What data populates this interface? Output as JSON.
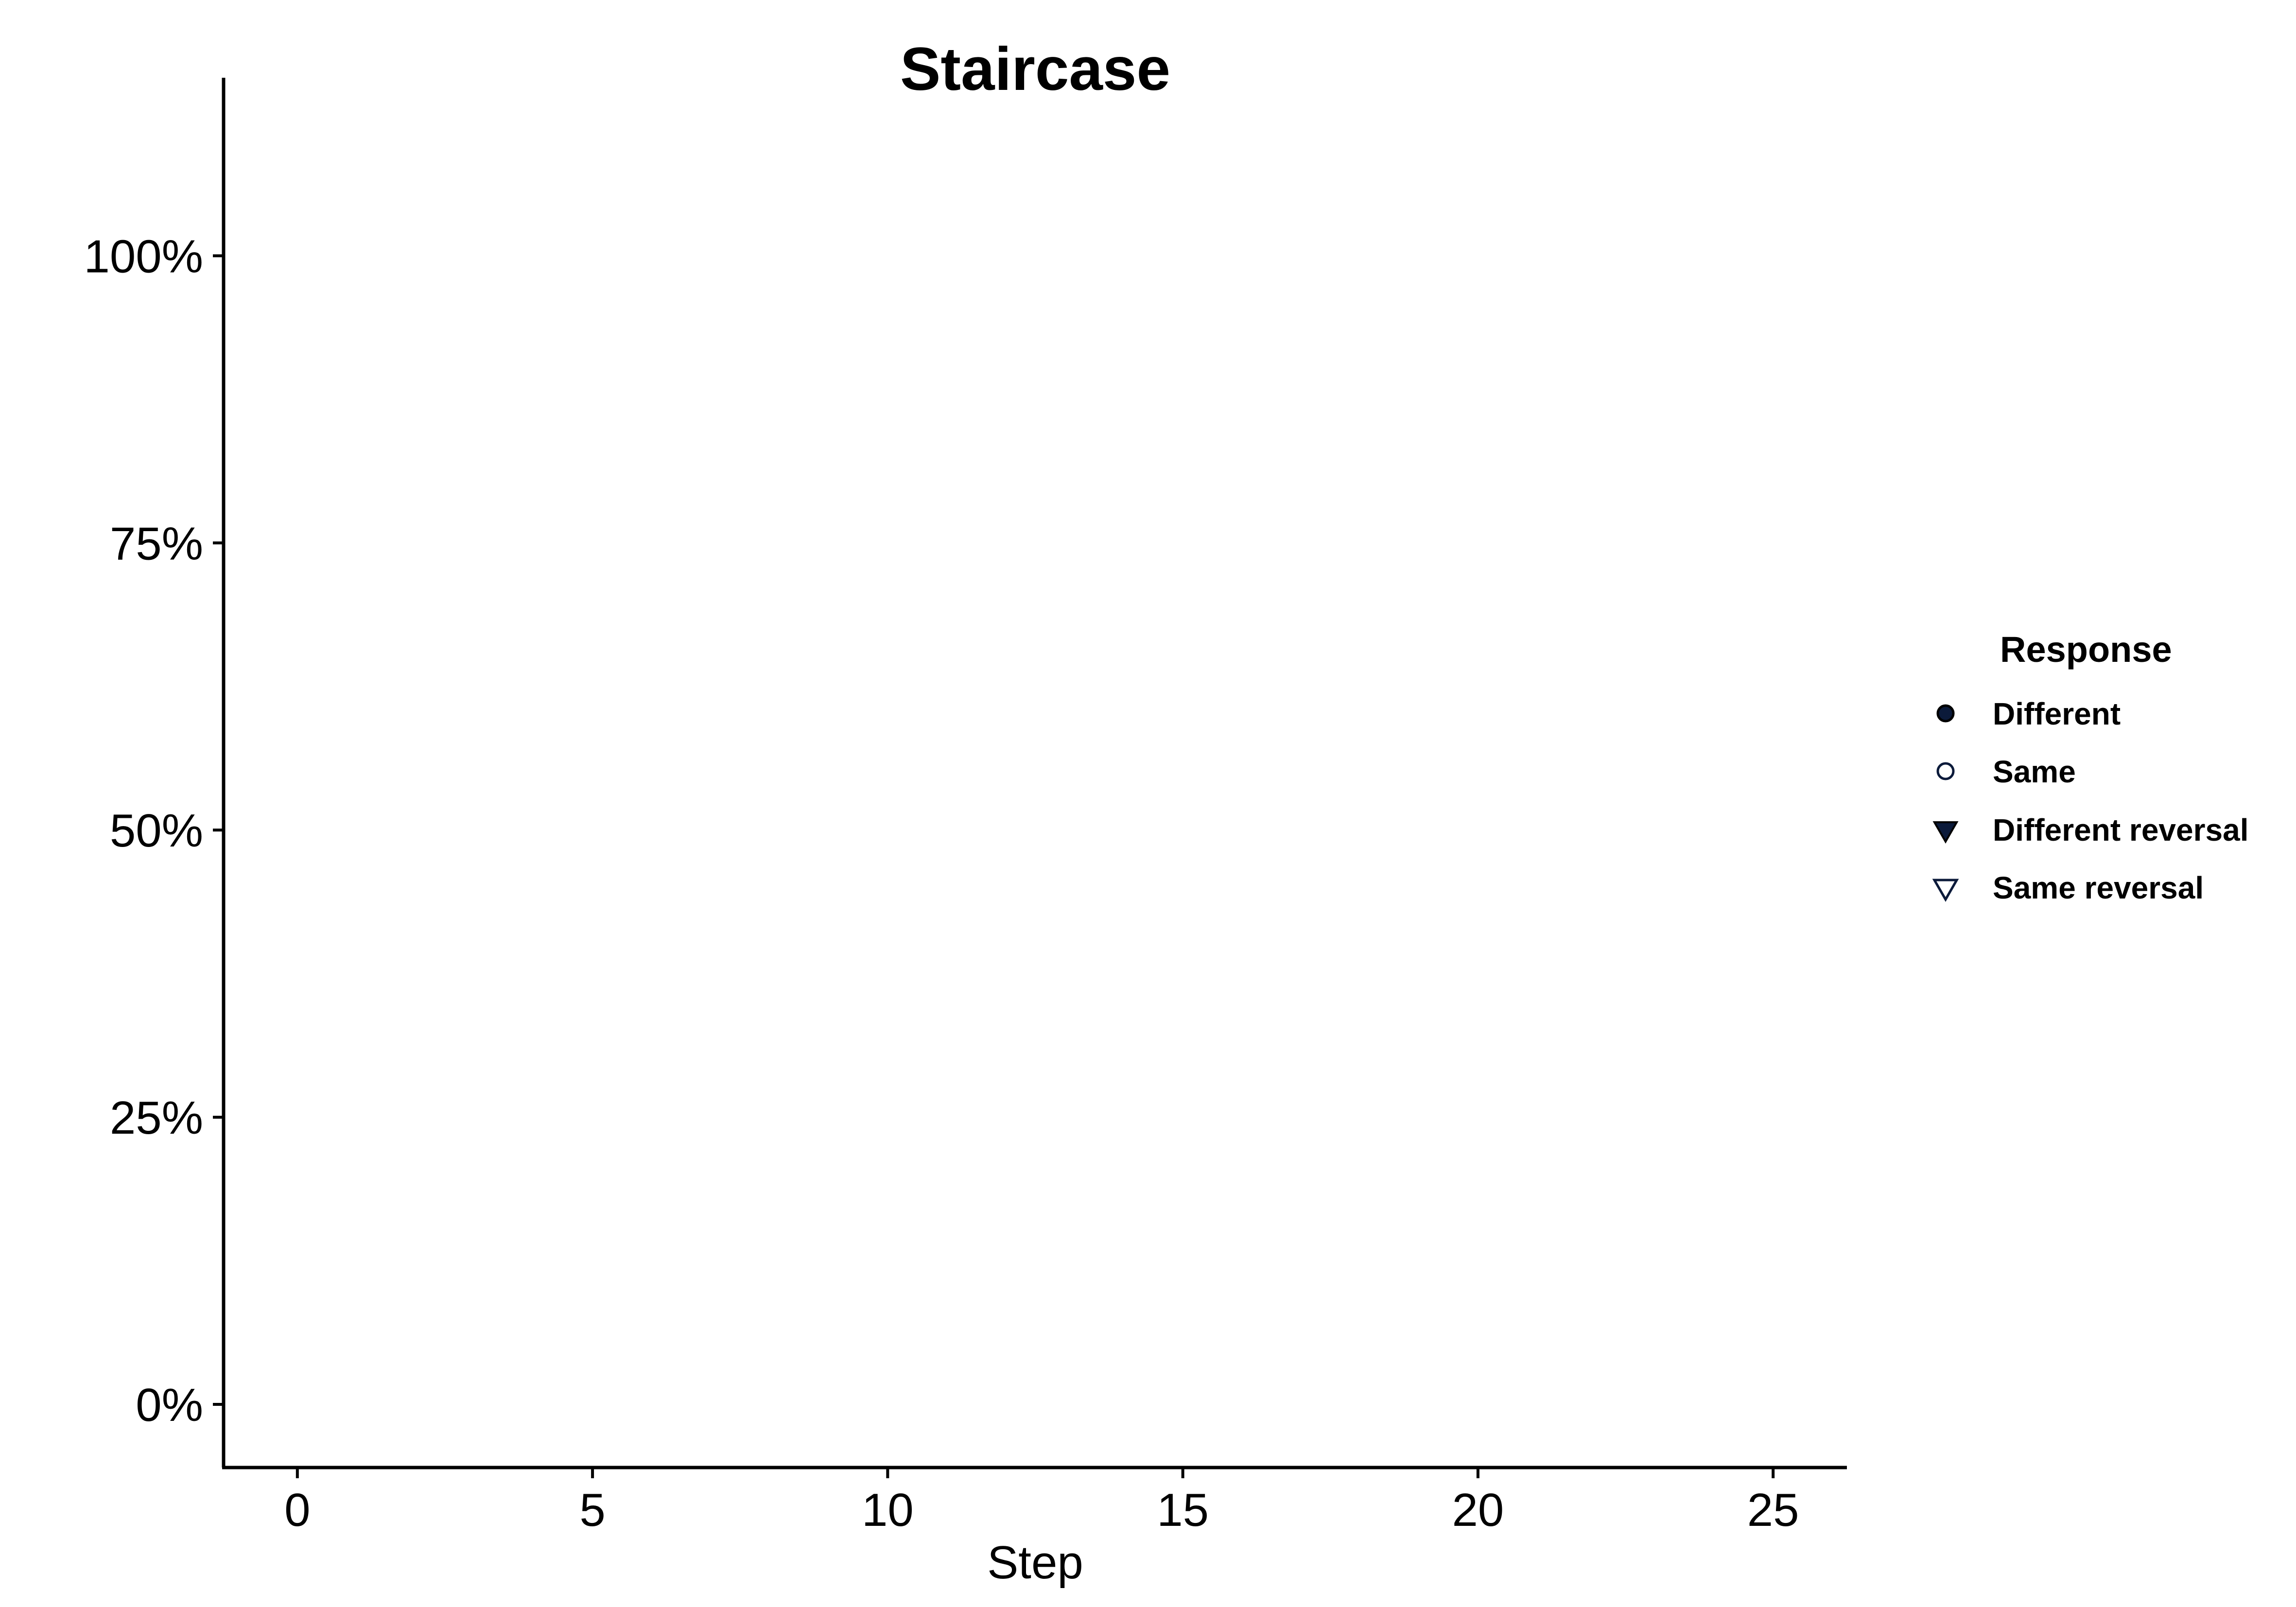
{
  "chart_data": {
    "type": "scatter",
    "title": "Staircase",
    "xlabel": "Step",
    "ylabel": "",
    "xlim": [
      -1.25,
      26.25
    ],
    "ylim": [
      -0.055,
      1.155
    ],
    "x_ticks": [
      0,
      5,
      10,
      15,
      20,
      25
    ],
    "x_tick_labels": [
      "0",
      "5",
      "10",
      "15",
      "20",
      "25"
    ],
    "y_ticks": [
      0,
      0.25,
      0.5,
      0.75,
      1.0
    ],
    "y_tick_labels": [
      "0%",
      "25%",
      "50%",
      "75%",
      "100%"
    ],
    "grid": false,
    "legend": {
      "title": "Response",
      "placement": "right",
      "entries": [
        {
          "label": "Different",
          "shape": "circle",
          "filled": true
        },
        {
          "label": "Same",
          "shape": "circle",
          "filled": false
        },
        {
          "label": "Different reversal",
          "shape": "triangle-down",
          "filled": true
        },
        {
          "label": "Same reversal",
          "shape": "triangle-down",
          "filled": false
        }
      ]
    },
    "series": [],
    "colors": {
      "marker": "#0b1a3a",
      "axis": "#000000",
      "text": "#000000"
    }
  }
}
